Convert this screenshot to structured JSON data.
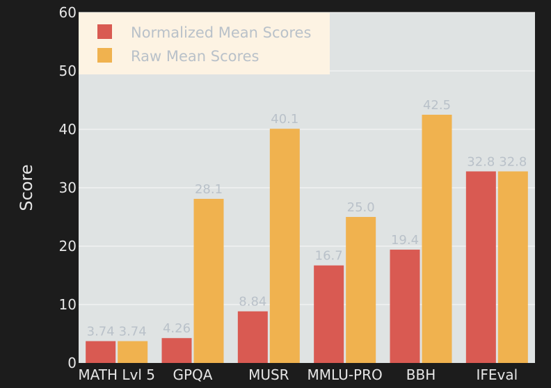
{
  "chart_data": {
    "type": "bar",
    "ylabel": "Score",
    "xlabel": "",
    "ylim": [
      0,
      60
    ],
    "yticks": [
      0,
      10,
      20,
      30,
      40,
      50,
      60
    ],
    "grid": true,
    "legend_position": "top-left",
    "categories": [
      "MATH Lvl 5",
      "GPQA",
      "MUSR",
      "MMLU-PRO",
      "BBH",
      "IFEval"
    ],
    "series": [
      {
        "name": "Normalized Mean Scores",
        "color": "#d95a52",
        "values": [
          3.74,
          4.26,
          8.84,
          16.7,
          19.4,
          32.8
        ],
        "labels": [
          "3.74",
          "4.26",
          "8.84",
          "16.7",
          "19.4",
          "32.8"
        ]
      },
      {
        "name": "Raw Mean Scores",
        "color": "#f0b24f",
        "values": [
          3.74,
          28.1,
          40.1,
          25.0,
          42.5,
          32.8
        ],
        "labels": [
          "3.74",
          "28.1",
          "40.1",
          "25.0",
          "42.5",
          "32.8"
        ]
      }
    ],
    "colors": {
      "plot_background": "#dfe3e3",
      "grid": "#f4f4f4",
      "legend_background": "#fdf3e3",
      "page_background": "#1c1c1c"
    }
  }
}
